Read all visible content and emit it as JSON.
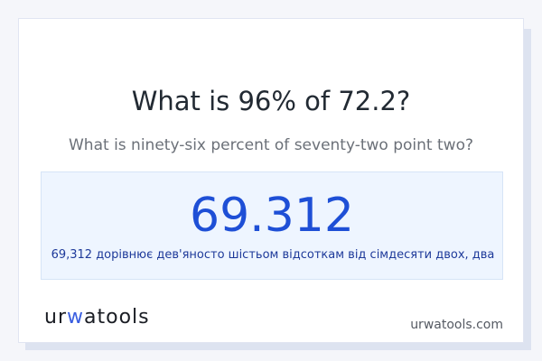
{
  "title": "What is 96% of 72.2?",
  "subtitle": "What is ninety-six percent of seventy-two point two?",
  "result": {
    "value": "69.312",
    "words": "69,312 дорівнює дев'яносто шістьом відсоткам від сімдесяти двох, два"
  },
  "logo": {
    "text": "urwatools",
    "prefix": "ur",
    "accent": "w",
    "suffix": "atools"
  },
  "site": "urwatools.com"
}
